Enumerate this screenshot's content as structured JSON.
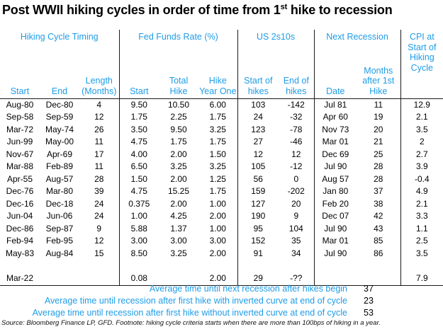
{
  "title": {
    "part1": "Post WWII hiking cycles in order of time from 1",
    "sup": "st",
    "part2": " hike to recession"
  },
  "chart_data": {
    "type": "table",
    "title": "Post WWII hiking cycles in order of time from 1st hike to recession",
    "column_groups": [
      {
        "label": "Hiking Cycle Timing",
        "span": 3
      },
      {
        "label": "Fed Funds Rate (%)",
        "span": 3
      },
      {
        "label": "US 2s10s",
        "span": 2
      },
      {
        "label": "Next Recession",
        "span": 2
      },
      {
        "label": "CPI at\nStart of\nHiking\nCycle",
        "span": 1
      }
    ],
    "columns": [
      "Start",
      "End",
      "Length\n(Months)",
      "Start",
      "Total\nHike",
      "Hike\nYear One",
      "Start of\nhikes",
      "End of\nhikes",
      "Date",
      "Months\nafter 1st\nHike"
    ],
    "rows": [
      [
        "Aug-80",
        "Dec-80",
        "4",
        "9.50",
        "10.50",
        "6.00",
        "103",
        "-142",
        "Jul 81",
        "11",
        "12.9"
      ],
      [
        "Sep-58",
        "Sep-59",
        "12",
        "1.75",
        "2.25",
        "1.75",
        "24",
        "-32",
        "Apr 60",
        "19",
        "2.1"
      ],
      [
        "Mar-72",
        "May-74",
        "26",
        "3.50",
        "9.50",
        "3.25",
        "123",
        "-78",
        "Nov 73",
        "20",
        "3.5"
      ],
      [
        "Jun-99",
        "May-00",
        "11",
        "4.75",
        "1.75",
        "1.75",
        "27",
        "-46",
        "Mar 01",
        "21",
        "2"
      ],
      [
        "Nov-67",
        "Apr-69",
        "17",
        "4.00",
        "2.00",
        "1.50",
        "12",
        "12",
        "Dec 69",
        "25",
        "2.7"
      ],
      [
        "Mar-88",
        "Feb-89",
        "11",
        "6.50",
        "3.25",
        "3.25",
        "105",
        "-12",
        "Jul 90",
        "28",
        "3.9"
      ],
      [
        "Apr-55",
        "Aug-57",
        "28",
        "1.50",
        "2.00",
        "1.25",
        "56",
        "0",
        "Aug 57",
        "28",
        "-0.4"
      ],
      [
        "Dec-76",
        "Mar-80",
        "39",
        "4.75",
        "15.25",
        "1.75",
        "159",
        "-202",
        "Jan 80",
        "37",
        "4.9"
      ],
      [
        "Dec-16",
        "Dec-18",
        "24",
        "0.375",
        "2.00",
        "1.00",
        "127",
        "20",
        "Feb 20",
        "38",
        "2.1"
      ],
      [
        "Jun-04",
        "Jun-06",
        "24",
        "1.00",
        "4.25",
        "2.00",
        "190",
        "9",
        "Dec 07",
        "42",
        "3.3"
      ],
      [
        "Dec-86",
        "Sep-87",
        "9",
        "5.88",
        "1.37",
        "1.00",
        "95",
        "104",
        "Jul 90",
        "43",
        "1.1"
      ],
      [
        "Feb-94",
        "Feb-95",
        "12",
        "3.00",
        "3.00",
        "3.00",
        "152",
        "35",
        "Mar 01",
        "85",
        "2.5"
      ],
      [
        "May-83",
        "Aug-84",
        "15",
        "8.50",
        "3.25",
        "2.00",
        "91",
        "34",
        "Jul 90",
        "86",
        "3.5"
      ]
    ],
    "last_row": [
      "Mar-22",
      "",
      "",
      "0.08",
      "",
      "2.00",
      "29",
      "-??",
      "",
      "",
      "7.9"
    ],
    "summary": [
      {
        "label": "Average time until next recession after hikes begin",
        "value": "37"
      },
      {
        "label": "Average time until recession after first hike with inverted curve at end of cycle",
        "value": "23"
      },
      {
        "label": "Average time until recession after first hike without inverted curve at end of cycle",
        "value": "53"
      }
    ],
    "footnote": "Source: Bloomberg Finance LP, GFD. Footnote: hiking cycle criteria starts when there are more than 100bps of hiking in a year."
  },
  "colors": {
    "accent": "#1e9ce8",
    "text": "#000000",
    "line": "#1a1a1a"
  }
}
